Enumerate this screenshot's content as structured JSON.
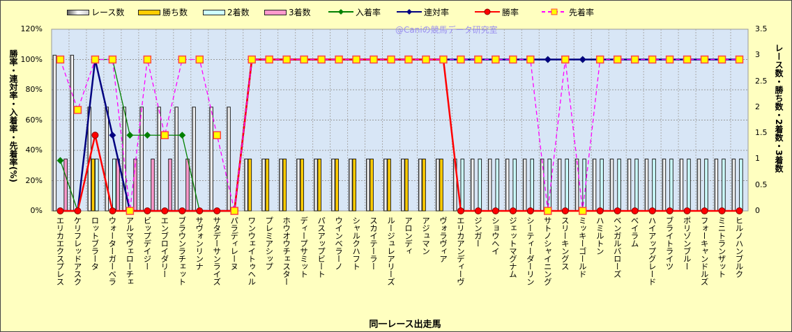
{
  "chart_data": {
    "type": "bar+line",
    "xlabel": "同一レース出走馬",
    "ylabel_left": "勝率・連対率・入着率・先着率(%)",
    "ylabel_right": "レース数・勝ち数・2着数・3着数",
    "watermark": "@Caniの競馬データ研究室",
    "ylim_left": [
      0,
      120
    ],
    "ylim_right": [
      0,
      3.5
    ],
    "left_ticks": [
      "0%",
      "20%",
      "40%",
      "60%",
      "80%",
      "100%",
      "120%"
    ],
    "right_ticks": [
      "0",
      "0.5",
      "1",
      "1.5",
      "2",
      "2.5",
      "3",
      "3.5"
    ],
    "grid": true,
    "legend_position": "top",
    "categories": [
      "エリカエクスプレス",
      "ケリフレッドアスク",
      "ロットブラータ",
      "ウォーターガーベラ",
      "アルマヴェローチェ",
      "ビップデイジー",
      "エンブロイダリー",
      "ブラウンラチェット",
      "サヴォンリンナ",
      "サタデーサンライズ",
      "パラディレーヌ",
      "ワンウェイトゥヘル",
      "プレミアシップ",
      "ホウオウチェスター",
      "ディープサミット",
      "パスアップビート",
      "ウインベラーノ",
      "シャルクハフト",
      "スカイテーラー",
      "ルージュレアリーズ",
      "アロンディ",
      "アジュマン",
      "ヴォラヴィア",
      "エリカアンディーヴ",
      "ジンガー",
      "ショウヘイ",
      "ジェットマグナム",
      "シーティーダーリン",
      "サトノシャイニング",
      "スリーキングス",
      "ミッキーゴールド",
      "ハミルトン",
      "ベンガルバローズ",
      "ベイラム",
      "ハイアップグレード",
      "ブライトライツ",
      "ポリゾンブルー",
      "フォーキャンドルズ",
      "ミニトランザット",
      "ヒルノハンブルク"
    ],
    "bar_series": [
      {
        "name": "レース数",
        "axis": "right",
        "color": "#e8e8e8",
        "values": [
          3,
          3,
          2,
          2,
          2,
          2,
          2,
          2,
          2,
          2,
          2,
          1,
          1,
          1,
          1,
          1,
          1,
          1,
          1,
          1,
          1,
          1,
          1,
          1,
          1,
          1,
          1,
          1,
          1,
          1,
          1,
          1,
          1,
          1,
          1,
          1,
          1,
          1,
          1,
          1
        ]
      },
      {
        "name": "勝ち数",
        "axis": "right",
        "color": "#FFCC00",
        "values": [
          0,
          0,
          1,
          0,
          0,
          0,
          0,
          0,
          0,
          0,
          0,
          1,
          1,
          1,
          1,
          1,
          1,
          1,
          1,
          1,
          1,
          1,
          1,
          0,
          0,
          0,
          0,
          0,
          0,
          0,
          0,
          0,
          0,
          0,
          0,
          0,
          0,
          0,
          0,
          0
        ]
      },
      {
        "name": "2着数",
        "axis": "right",
        "color": "#CCFFFF",
        "values": [
          0,
          0,
          1,
          1,
          0,
          0,
          0,
          0,
          0,
          0,
          0,
          0,
          0,
          0,
          0,
          0,
          0,
          0,
          0,
          0,
          0,
          0,
          0,
          1,
          1,
          1,
          1,
          1,
          1,
          1,
          1,
          1,
          1,
          1,
          1,
          1,
          1,
          1,
          1,
          1
        ]
      },
      {
        "name": "3着数",
        "axis": "right",
        "color": "#FF99CC",
        "values": [
          1,
          0,
          0,
          1,
          1,
          1,
          1,
          1,
          0,
          0,
          0,
          0,
          0,
          0,
          0,
          0,
          0,
          0,
          0,
          0,
          0,
          0,
          0,
          0,
          0,
          0,
          0,
          0,
          0,
          0,
          0,
          0,
          0,
          0,
          0,
          0,
          0,
          0,
          0,
          0
        ]
      }
    ],
    "line_series": [
      {
        "name": "入着率",
        "axis": "left",
        "color": "#008000",
        "marker": "diamond",
        "values": [
          33.3,
          0,
          100,
          100,
          50,
          50,
          50,
          50,
          0,
          0,
          0,
          100,
          100,
          100,
          100,
          100,
          100,
          100,
          100,
          100,
          100,
          100,
          100,
          100,
          100,
          100,
          100,
          100,
          100,
          100,
          100,
          100,
          100,
          100,
          100,
          100,
          100,
          100,
          100,
          100
        ]
      },
      {
        "name": "連対率",
        "axis": "left",
        "color": "#000080",
        "marker": "diamond",
        "values": [
          0,
          0,
          100,
          50,
          0,
          0,
          0,
          0,
          0,
          0,
          0,
          100,
          100,
          100,
          100,
          100,
          100,
          100,
          100,
          100,
          100,
          100,
          100,
          100,
          100,
          100,
          100,
          100,
          100,
          100,
          100,
          100,
          100,
          100,
          100,
          100,
          100,
          100,
          100,
          100
        ]
      },
      {
        "name": "勝率",
        "axis": "left",
        "color": "#FF0000",
        "marker": "circle",
        "values": [
          0,
          0,
          50,
          0,
          0,
          0,
          0,
          0,
          0,
          0,
          0,
          100,
          100,
          100,
          100,
          100,
          100,
          100,
          100,
          100,
          100,
          100,
          100,
          0,
          0,
          0,
          0,
          0,
          0,
          0,
          0,
          0,
          0,
          0,
          0,
          0,
          0,
          0,
          0,
          0
        ]
      },
      {
        "name": "先着率",
        "axis": "left",
        "color": "#FF00FF",
        "marker": "square",
        "dashed": true,
        "values": [
          100,
          66.7,
          100,
          100,
          0,
          100,
          50,
          100,
          100,
          50,
          0,
          100,
          100,
          100,
          100,
          100,
          100,
          100,
          100,
          100,
          100,
          100,
          100,
          100,
          100,
          100,
          100,
          100,
          0,
          100,
          0,
          100,
          100,
          100,
          100,
          100,
          100,
          100,
          100,
          100
        ]
      }
    ]
  }
}
